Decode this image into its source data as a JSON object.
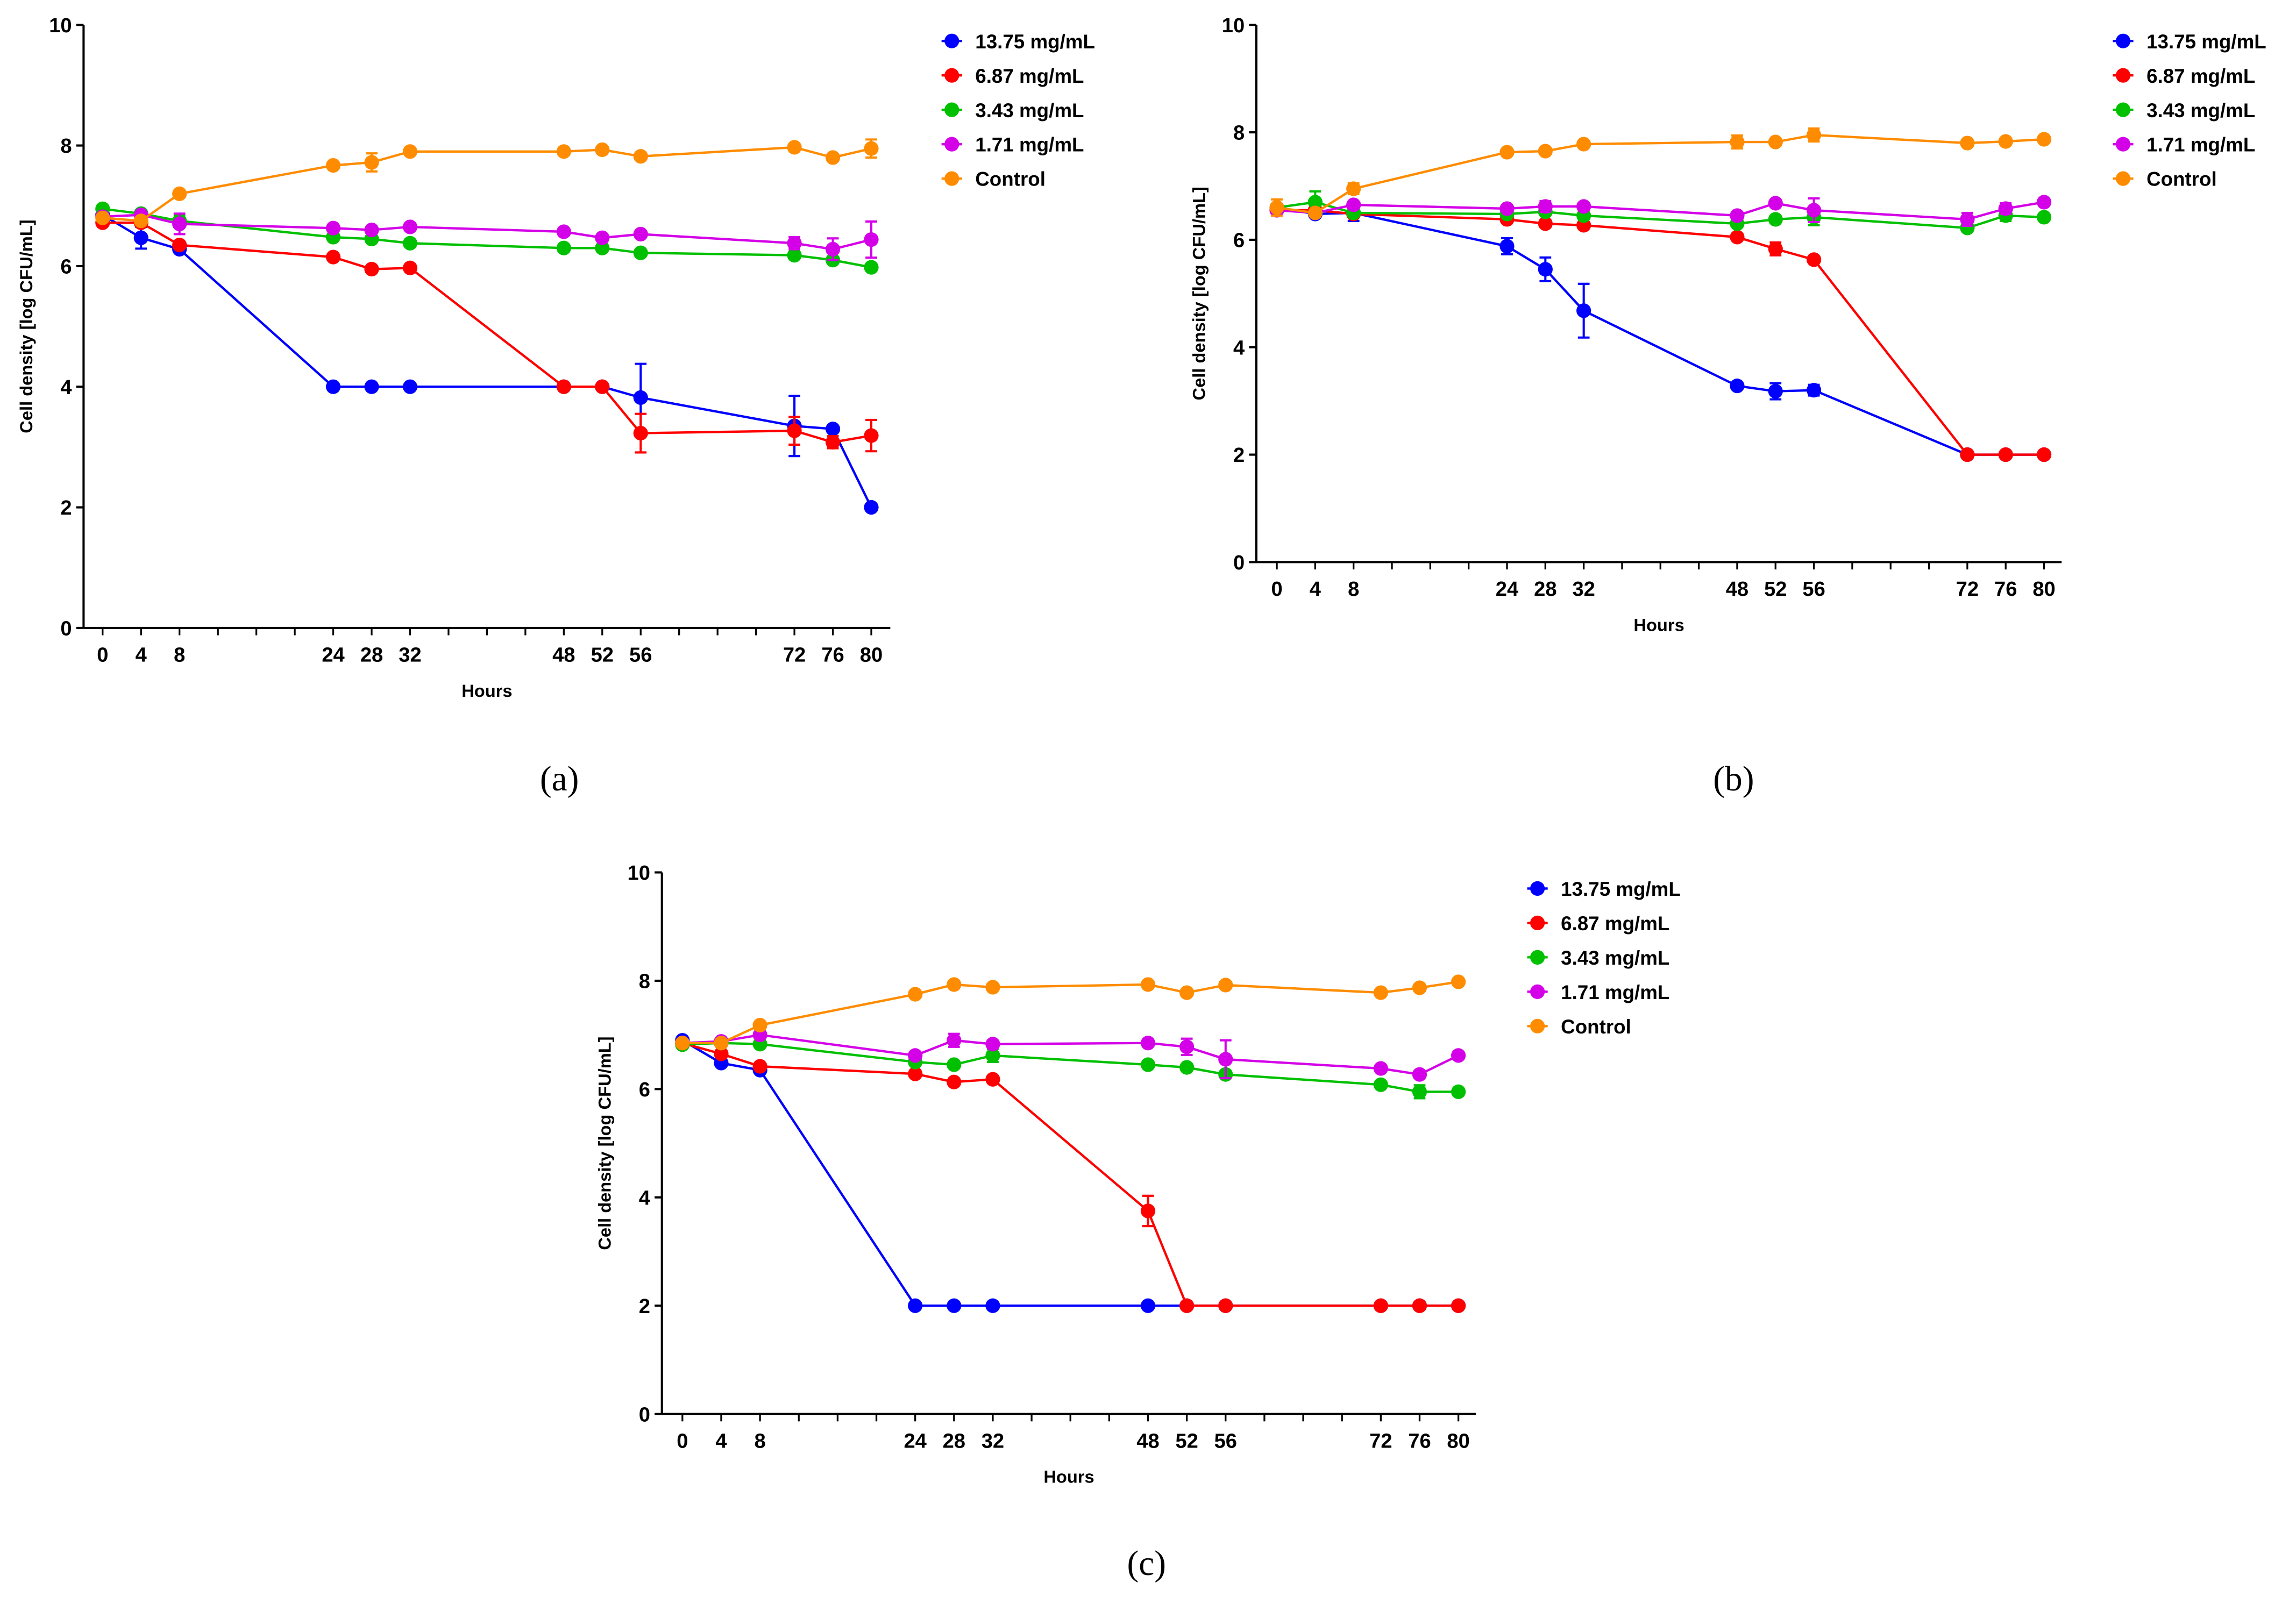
{
  "chart_data": [
    {
      "type": "line",
      "caption": "(a)",
      "xlabel": "Hours",
      "ylabel": "Cell density [log CFU/mL]",
      "xlim": [
        0,
        80
      ],
      "ylim": [
        0,
        10
      ],
      "x": [
        0,
        4,
        8,
        24,
        28,
        32,
        48,
        52,
        56,
        72,
        76,
        80
      ],
      "xticklabels": [
        "0",
        "4",
        "8",
        "24",
        "28",
        "32",
        "48",
        "52",
        "56",
        "72",
        "76",
        "80"
      ],
      "yticks": [
        "0",
        "2",
        "4",
        "6",
        "8",
        "10"
      ],
      "legend": "top-right",
      "series": [
        {
          "name": "13.75 mg/mL",
          "color": "#0000ff",
          "values": [
            6.85,
            6.47,
            6.28,
            4.0,
            4.0,
            4.0,
            4.0,
            4.0,
            3.82,
            3.35,
            3.3,
            2.0
          ],
          "err": [
            0.05,
            0.18,
            0.05,
            0,
            0,
            0,
            0,
            0,
            0.56,
            0.5,
            0.05,
            0
          ]
        },
        {
          "name": "6.87 mg/mL",
          "color": "#ff0000",
          "values": [
            6.72,
            6.72,
            6.35,
            6.15,
            5.95,
            5.97,
            4.0,
            4.0,
            3.23,
            3.27,
            3.08,
            3.19
          ],
          "err": [
            0,
            0,
            0,
            0,
            0,
            0,
            0,
            0,
            0.32,
            0.23,
            0.1,
            0.26
          ]
        },
        {
          "name": "3.43 mg/mL",
          "color": "#00c000",
          "values": [
            6.95,
            6.87,
            6.75,
            6.48,
            6.45,
            6.38,
            6.3,
            6.3,
            6.22,
            6.18,
            6.1,
            5.98
          ],
          "err": [
            0,
            0,
            0.1,
            0,
            0,
            0,
            0,
            0,
            0,
            0,
            0.05,
            0
          ]
        },
        {
          "name": "1.71 mg/mL",
          "color": "#d400e8",
          "values": [
            6.82,
            6.85,
            6.7,
            6.63,
            6.6,
            6.65,
            6.57,
            6.47,
            6.53,
            6.38,
            6.28,
            6.44
          ],
          "err": [
            0,
            0,
            0.17,
            0,
            0,
            0,
            0,
            0,
            0,
            0.1,
            0.18,
            0.3
          ]
        },
        {
          "name": "Control",
          "color": "#ff8c00",
          "values": [
            6.8,
            6.75,
            7.2,
            7.67,
            7.72,
            7.9,
            7.9,
            7.93,
            7.82,
            7.97,
            7.8,
            7.95
          ],
          "err": [
            0,
            0,
            0,
            0,
            0.15,
            0,
            0,
            0,
            0,
            0,
            0,
            0.15
          ]
        }
      ]
    },
    {
      "type": "line",
      "caption": "(b)",
      "xlabel": "Hours",
      "ylabel": "Cell density [log CFU/mL]",
      "xlim": [
        0,
        80
      ],
      "ylim": [
        0,
        10
      ],
      "x": [
        0,
        4,
        8,
        24,
        28,
        32,
        48,
        52,
        56,
        72,
        76,
        80
      ],
      "xticklabels": [
        "0",
        "4",
        "8",
        "24",
        "28",
        "32",
        "48",
        "52",
        "56",
        "72",
        "76",
        "80"
      ],
      "yticks": [
        "0",
        "2",
        "4",
        "6",
        "8",
        "10"
      ],
      "legend": "top-right",
      "series": [
        {
          "name": "13.75 mg/mL",
          "color": "#0000ff",
          "values": [
            6.6,
            6.48,
            6.5,
            5.88,
            5.45,
            4.68,
            3.28,
            3.18,
            3.2,
            2.0,
            2.0,
            2.0
          ],
          "err": [
            0,
            0,
            0.15,
            0.15,
            0.22,
            0.5,
            0,
            0.15,
            0.1,
            0,
            0,
            0
          ]
        },
        {
          "name": "6.87 mg/mL",
          "color": "#ff0000",
          "values": [
            6.55,
            6.55,
            6.48,
            6.38,
            6.3,
            6.27,
            6.05,
            5.83,
            5.63,
            2.0,
            2.0,
            2.0
          ],
          "err": [
            0,
            0,
            0,
            0,
            0,
            0,
            0,
            0.12,
            0,
            0,
            0,
            0
          ]
        },
        {
          "name": "3.43 mg/mL",
          "color": "#00c000",
          "values": [
            6.6,
            6.7,
            6.5,
            6.48,
            6.52,
            6.45,
            6.3,
            6.38,
            6.42,
            6.22,
            6.45,
            6.42
          ],
          "err": [
            0,
            0.2,
            0,
            0,
            0,
            0,
            0,
            0,
            0.15,
            0,
            0.1,
            0
          ]
        },
        {
          "name": "1.71 mg/mL",
          "color": "#d400e8",
          "values": [
            6.55,
            6.5,
            6.65,
            6.58,
            6.62,
            6.62,
            6.45,
            6.68,
            6.55,
            6.38,
            6.58,
            6.7
          ],
          "err": [
            0,
            0,
            0,
            0,
            0.1,
            0,
            0,
            0,
            0.22,
            0.12,
            0.1,
            0
          ]
        },
        {
          "name": "Control",
          "color": "#ff8c00",
          "values": [
            6.6,
            6.5,
            6.95,
            7.63,
            7.65,
            7.78,
            7.82,
            7.82,
            7.95,
            7.8,
            7.83,
            7.87
          ],
          "err": [
            0.15,
            0,
            0.1,
            0,
            0,
            0,
            0.12,
            0,
            0.12,
            0,
            0,
            0
          ]
        }
      ]
    },
    {
      "type": "line",
      "caption": "(c)",
      "xlabel": "Hours",
      "ylabel": "Cell density [log CFU/mL]",
      "xlim": [
        0,
        80
      ],
      "ylim": [
        0,
        10
      ],
      "x": [
        0,
        4,
        8,
        24,
        28,
        32,
        48,
        52,
        56,
        72,
        76,
        80
      ],
      "xticklabels": [
        "0",
        "4",
        "8",
        "24",
        "28",
        "32",
        "48",
        "52",
        "56",
        "72",
        "76",
        "80"
      ],
      "yticks": [
        "0",
        "2",
        "4",
        "6",
        "8",
        "10"
      ],
      "legend": "top-right",
      "series": [
        {
          "name": "13.75 mg/mL",
          "color": "#0000ff",
          "values": [
            6.9,
            6.48,
            6.35,
            2.0,
            2.0,
            2.0,
            2.0,
            2.0,
            2.0,
            2.0,
            2.0,
            2.0
          ],
          "err": [
            0,
            0,
            0,
            0,
            0,
            0,
            0,
            0,
            0,
            0,
            0,
            0
          ]
        },
        {
          "name": "6.87 mg/mL",
          "color": "#ff0000",
          "values": [
            6.85,
            6.65,
            6.42,
            6.28,
            6.13,
            6.18,
            3.75,
            2.0,
            2.0,
            2.0,
            2.0,
            2.0
          ],
          "err": [
            0,
            0,
            0,
            0,
            0,
            0,
            0.28,
            0,
            0,
            0,
            0,
            0
          ]
        },
        {
          "name": "3.43 mg/mL",
          "color": "#00c000",
          "values": [
            6.82,
            6.85,
            6.83,
            6.5,
            6.45,
            6.62,
            6.45,
            6.4,
            6.27,
            6.08,
            5.95,
            5.95
          ],
          "err": [
            0,
            0,
            0,
            0,
            0,
            0.12,
            0,
            0,
            0,
            0,
            0.12,
            0
          ]
        },
        {
          "name": "1.71 mg/mL",
          "color": "#d400e8",
          "values": [
            6.85,
            6.88,
            7.0,
            6.62,
            6.9,
            6.83,
            6.85,
            6.78,
            6.55,
            6.38,
            6.27,
            6.62
          ],
          "err": [
            0,
            0,
            0,
            0,
            0.12,
            0,
            0,
            0.15,
            0.35,
            0,
            0,
            0
          ]
        },
        {
          "name": "Control",
          "color": "#ff8c00",
          "values": [
            6.85,
            6.85,
            7.18,
            7.75,
            7.93,
            7.88,
            7.93,
            7.78,
            7.92,
            7.78,
            7.87,
            7.98
          ],
          "err": [
            0,
            0,
            0,
            0,
            0,
            0,
            0,
            0,
            0,
            0,
            0,
            0
          ]
        }
      ]
    }
  ]
}
